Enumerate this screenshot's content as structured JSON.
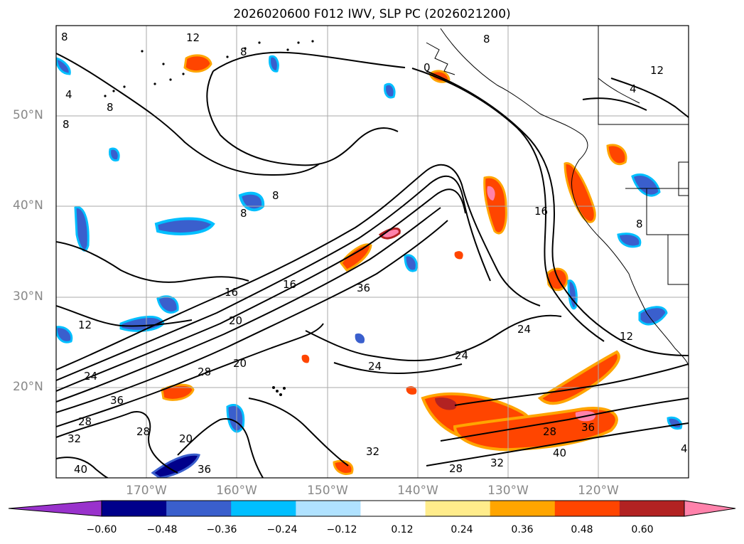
{
  "title": "2026020600 F012 IWV, SLP PC (2026021200)",
  "latitude_labels": [
    "50°N",
    "40°N",
    "30°N",
    "20°N"
  ],
  "longitude_labels": [
    "170°W",
    "160°W",
    "150°W",
    "140°W",
    "130°W",
    "120°W"
  ],
  "contour_labels": [
    "8",
    "12",
    "8",
    "4",
    "8",
    "0",
    "8",
    "12",
    "4",
    "8",
    "8",
    "8",
    "16",
    "20",
    "24",
    "36",
    "16",
    "12",
    "24",
    "28",
    "20",
    "36",
    "28",
    "32",
    "28",
    "20",
    "40",
    "36",
    "24",
    "24",
    "16",
    "12",
    "28",
    "36",
    "32",
    "28",
    "32",
    "40",
    "4",
    "8"
  ],
  "colorbar": {
    "ticks": [
      "−0.60",
      "−0.48",
      "−0.36",
      "−0.24",
      "−0.12",
      "0.12",
      "0.24",
      "0.36",
      "0.48",
      "0.60"
    ],
    "colors": [
      "#9932cc",
      "#00008b",
      "#3a5fcd",
      "#00bfff",
      "#b0e2ff",
      "#ffffff",
      "#ffec8b",
      "#ffa500",
      "#ff4500",
      "#b22222",
      "#ff82ab"
    ]
  }
}
